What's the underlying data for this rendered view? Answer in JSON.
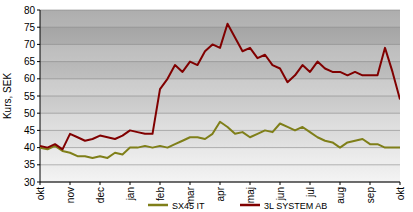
{
  "chart_data": {
    "type": "line",
    "y_label": "Kurs, SEK",
    "categories": [
      "okt",
      null,
      null,
      null,
      "nov",
      null,
      null,
      null,
      "dec",
      null,
      null,
      null,
      "jan",
      null,
      null,
      null,
      "feb",
      null,
      null,
      null,
      "mar",
      null,
      null,
      null,
      "apr",
      null,
      null,
      null,
      "maj",
      null,
      null,
      null,
      "jun",
      null,
      null,
      null,
      "jul",
      null,
      null,
      null,
      "aug",
      null,
      null,
      null,
      "sep",
      null,
      null,
      null,
      "okt"
    ],
    "series": [
      {
        "name": "SX45 IT",
        "color": "#7f7f19",
        "values": [
          40,
          39.5,
          40.5,
          39,
          38.5,
          37.5,
          37.5,
          37,
          37.5,
          37,
          38.5,
          38,
          40,
          40,
          40.5,
          40,
          40.5,
          40,
          41,
          42,
          43,
          43,
          42.5,
          44,
          47.5,
          46,
          44,
          44.5,
          43,
          44,
          45,
          44.5,
          47,
          46,
          45,
          46,
          44.5,
          43,
          42,
          41.5,
          40,
          41.5,
          42,
          42.5,
          41,
          41,
          40,
          40,
          40
        ]
      },
      {
        "name": "3L SYSTEM AB",
        "color": "#800000",
        "values": [
          40.5,
          40,
          41,
          39.5,
          44,
          43,
          42,
          42.5,
          43.5,
          43,
          42.5,
          43.5,
          45,
          44.5,
          44,
          44,
          57,
          60,
          64,
          62,
          65,
          64,
          68,
          70,
          69,
          76,
          72,
          68,
          69,
          66,
          67,
          64,
          63,
          59,
          61,
          64,
          62,
          65,
          63,
          62,
          62,
          61,
          62,
          61,
          61,
          61,
          69,
          62,
          54
        ]
      }
    ],
    "ylim": [
      30,
      80
    ],
    "yticks": [
      30,
      35,
      40,
      45,
      50,
      55,
      60,
      65,
      70,
      75,
      80
    ],
    "grid": true,
    "legend": "bottom"
  }
}
